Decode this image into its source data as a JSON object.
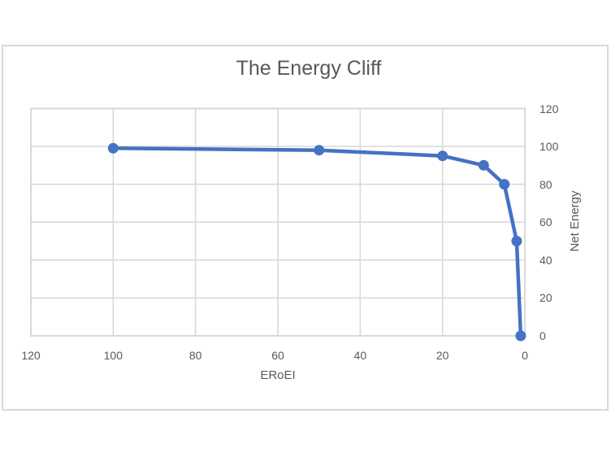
{
  "chart": {
    "title": "The Energy Cliff",
    "x_axis_title": "ERoEI",
    "y_axis_title": "Net Energy"
  },
  "chart_data": {
    "type": "line",
    "title": "The Energy Cliff",
    "xlabel": "ERoEI",
    "ylabel": "Net Energy",
    "x": [
      100,
      50,
      20,
      10,
      5,
      2,
      1
    ],
    "y": [
      99,
      98,
      95,
      90,
      80,
      50,
      0
    ],
    "xlim": [
      120,
      0
    ],
    "ylim": [
      0,
      120
    ],
    "x_ticks": [
      120,
      100,
      80,
      60,
      40,
      20,
      0
    ],
    "y_ticks": [
      0,
      20,
      40,
      60,
      80,
      100,
      120
    ],
    "x_axis_reversed": true,
    "y_axis_side": "right",
    "grid": true,
    "legend": "none",
    "marker": "circle",
    "series_color": "#4472C4",
    "grid_color": "#D9D9D9",
    "text_color": "#595959"
  }
}
